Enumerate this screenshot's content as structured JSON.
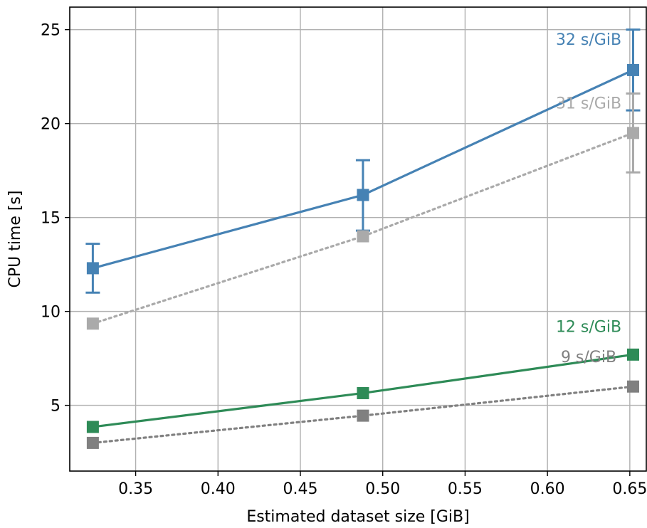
{
  "chart_data": {
    "type": "line",
    "xlabel": "Estimated dataset size [GiB]",
    "ylabel": "CPU time [s]",
    "xlim": [
      0.31,
      0.66
    ],
    "ylim": [
      1.5,
      26.2
    ],
    "x_ticks": [
      0.35,
      0.4,
      0.45,
      0.5,
      0.55,
      0.6,
      0.65
    ],
    "x_tick_labels": [
      "0.35",
      "0.40",
      "0.45",
      "0.50",
      "0.55",
      "0.60",
      "0.65"
    ],
    "y_ticks": [
      5,
      10,
      15,
      20,
      25
    ],
    "y_tick_labels": [
      "5",
      "10",
      "15",
      "20",
      "25"
    ],
    "grid": true,
    "x": [
      0.324,
      0.488,
      0.652
    ],
    "series": [
      {
        "color": "#4682b4",
        "linestyle": "solid",
        "marker": "square",
        "values": [
          12.3,
          16.2,
          22.85
        ],
        "err_low": [
          11.0,
          14.3,
          20.7
        ],
        "err_high": [
          13.6,
          18.05,
          25.0
        ]
      },
      {
        "color": "#aaaaaa",
        "linestyle": "dotted",
        "marker": "square",
        "values": [
          9.35,
          14.0,
          19.5
        ],
        "err_low": [
          null,
          null,
          17.4
        ],
        "err_high": [
          null,
          null,
          21.6
        ]
      },
      {
        "color": "#2e8b57",
        "linestyle": "solid",
        "marker": "square",
        "values": [
          3.85,
          5.65,
          7.7
        ]
      },
      {
        "color": "#808080",
        "linestyle": "dotted",
        "marker": "square",
        "values": [
          3.0,
          4.45,
          6.0
        ]
      }
    ],
    "annotations": [
      {
        "text": "32 s/GiB",
        "color": "#4682b4",
        "x": 0.625,
        "y": 24.2
      },
      {
        "text": "31 s/GiB",
        "color": "#aaaaaa",
        "x": 0.625,
        "y": 20.8
      },
      {
        "text": "12 s/GiB",
        "color": "#2e8b57",
        "x": 0.625,
        "y": 8.9
      },
      {
        "text": "9 s/GiB",
        "color": "#808080",
        "x": 0.625,
        "y": 7.3
      }
    ]
  }
}
